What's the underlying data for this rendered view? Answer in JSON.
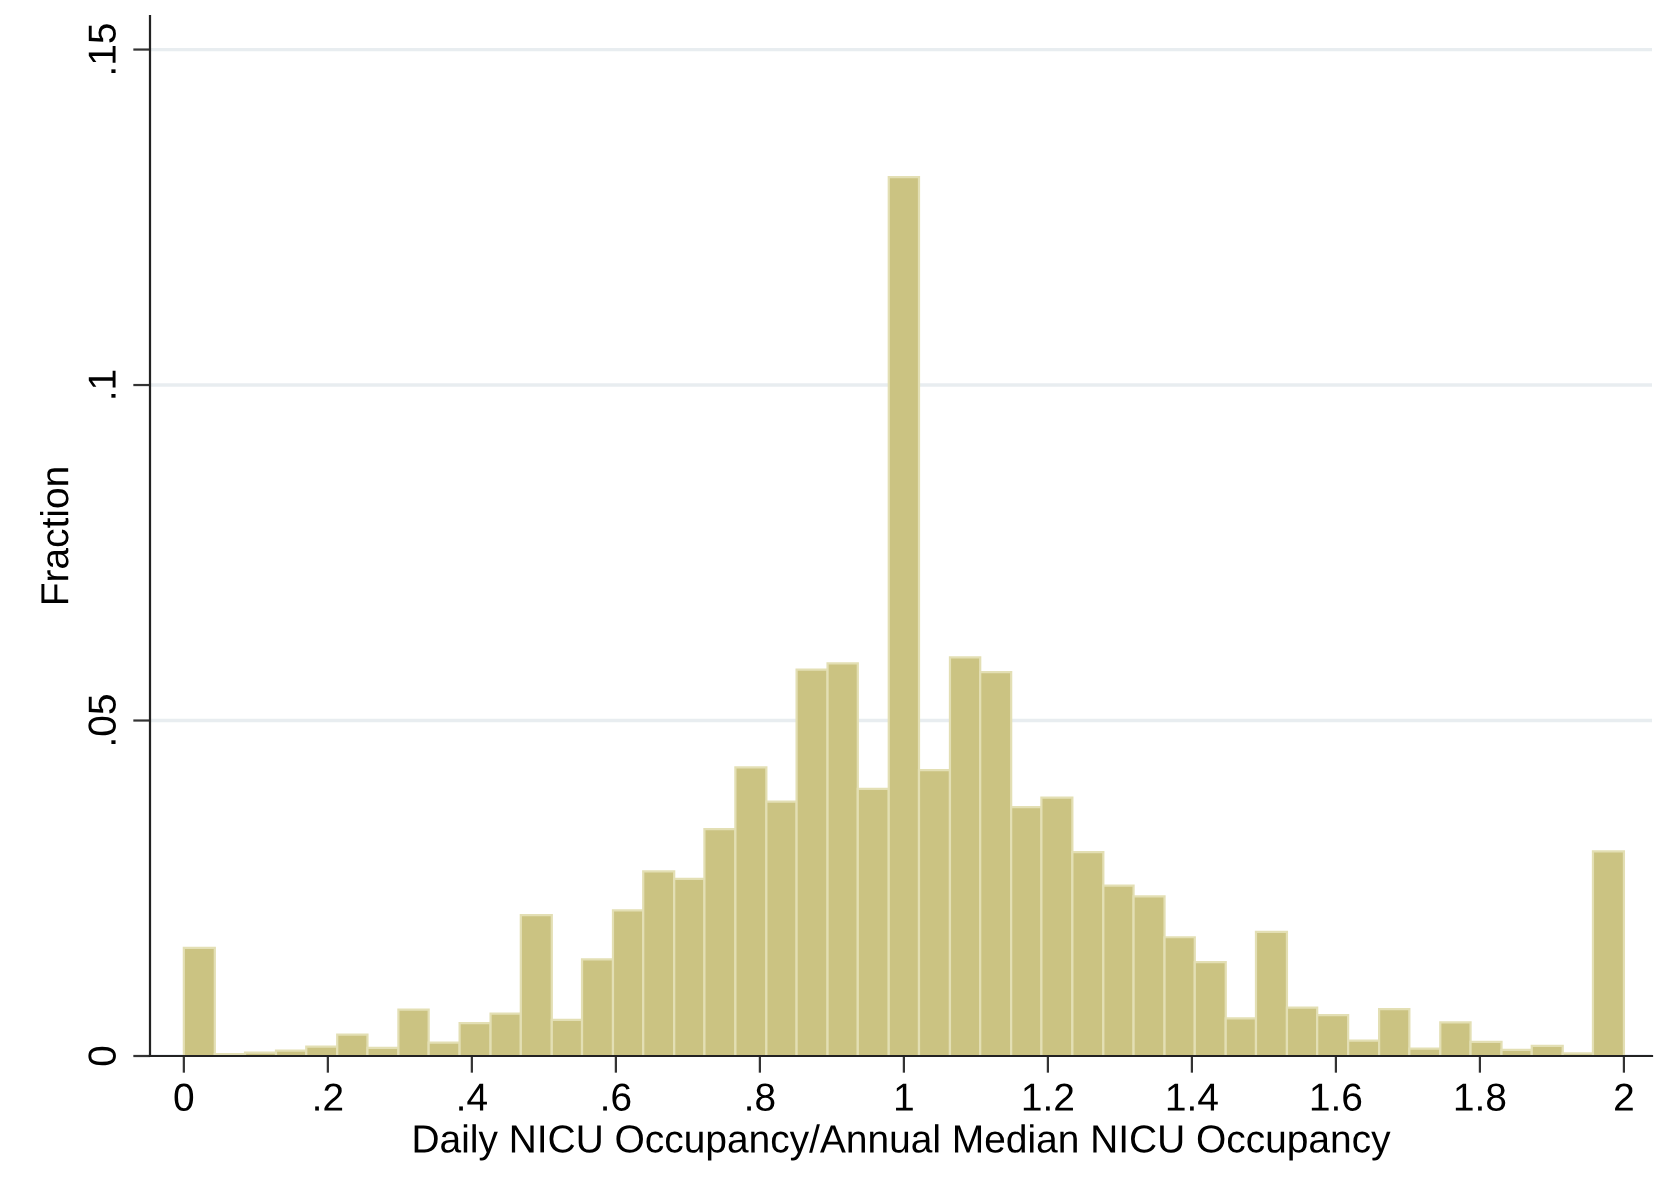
{
  "chart_data": {
    "type": "histogram",
    "xlabel": "Daily NICU Occupancy/Annual Median NICU Occupancy",
    "ylabel": "Fraction",
    "bins": [
      0,
      0.043,
      0.085,
      0.128,
      0.17,
      0.213,
      0.255,
      0.298,
      0.34,
      0.383,
      0.426,
      0.468,
      0.511,
      0.553,
      0.596,
      0.638,
      0.681,
      0.723,
      0.766,
      0.809,
      0.851,
      0.894,
      0.936,
      0.979,
      1.021,
      1.064,
      1.106,
      1.149,
      1.191,
      1.234,
      1.277,
      1.319,
      1.362,
      1.404,
      1.447,
      1.489,
      1.532,
      1.574,
      1.617,
      1.66,
      1.702,
      1.745,
      1.787,
      1.83,
      1.872,
      1.915,
      1.957,
      2
    ],
    "values": [
      0.0161,
      0.0003,
      0.0005,
      0.0008,
      0.0014,
      0.0032,
      0.0012,
      0.0069,
      0.002,
      0.0049,
      0.0063,
      0.021,
      0.0054,
      0.0144,
      0.0217,
      0.0275,
      0.0264,
      0.0338,
      0.043,
      0.0379,
      0.0576,
      0.0585,
      0.0398,
      0.131,
      0.0426,
      0.0594,
      0.0572,
      0.0371,
      0.0385,
      0.0304,
      0.0254,
      0.0238,
      0.0177,
      0.014,
      0.0056,
      0.0185,
      0.0072,
      0.0061,
      0.0023,
      0.007,
      0.0011,
      0.005,
      0.0021,
      0.0009,
      0.0015,
      0.0004,
      0.0305
    ],
    "color": "#cbc382",
    "xlim": [
      -0.047,
      2.039
    ],
    "ylim": [
      0,
      0.155
    ],
    "xticks": [
      0,
      {
        "value": 0.2,
        "label": ".2"
      },
      {
        "value": 0.4,
        "label": ".4"
      },
      {
        "value": 0.6,
        "label": ".6"
      },
      {
        "value": 0.8,
        "label": ".8"
      },
      1,
      1.2,
      1.4,
      1.6,
      1.8,
      2
    ],
    "yticks": [
      0,
      {
        "value": 0.05,
        "label": ".05"
      },
      {
        "value": 0.1,
        "label": ".1"
      },
      {
        "value": 0.15,
        "label": ".15"
      }
    ],
    "grid": "y",
    "legend": false
  }
}
